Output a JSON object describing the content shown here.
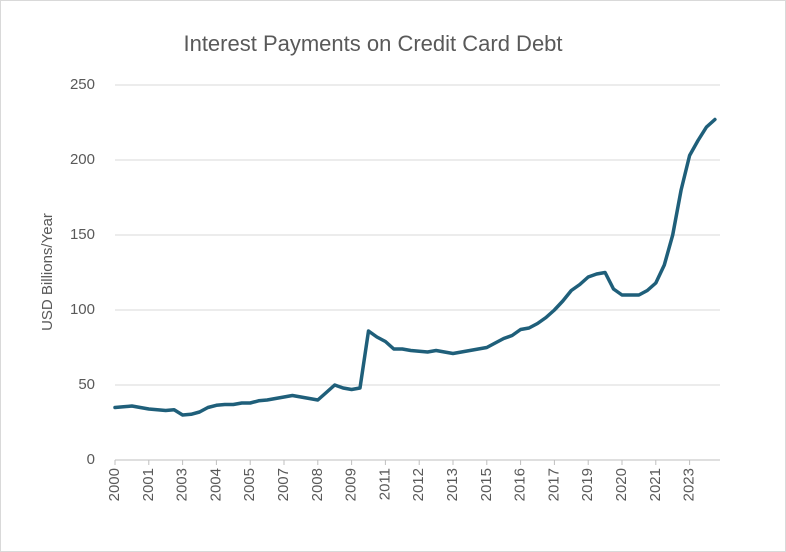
{
  "chart_data": {
    "type": "line",
    "title": "Interest Payments on Credit Card Debt",
    "y_label": "USD Billions/Year",
    "categories": [
      "2000",
      null,
      null,
      null,
      "2001",
      null,
      null,
      null,
      "2003",
      null,
      null,
      null,
      "2004",
      null,
      null,
      null,
      "2005",
      null,
      null,
      null,
      "2007",
      null,
      null,
      null,
      "2008",
      null,
      null,
      null,
      "2009",
      null,
      null,
      null,
      "2011",
      null,
      null,
      null,
      "2012",
      null,
      null,
      null,
      "2013",
      null,
      null,
      null,
      "2015",
      null,
      null,
      null,
      "2016",
      null,
      null,
      null,
      "2017",
      null,
      null,
      null,
      "2019",
      null,
      null,
      null,
      "2020",
      null,
      null,
      null,
      "2021",
      null,
      null,
      null,
      "2023",
      null,
      null,
      null
    ],
    "series": [
      {
        "name": "Interest Payments",
        "color": "#1f5f7a",
        "values": [
          35,
          35.5,
          36,
          35,
          34,
          33.5,
          33,
          33.5,
          30,
          30.5,
          32,
          35,
          36.5,
          37,
          37,
          38,
          38,
          39.5,
          40,
          41,
          42,
          43,
          42,
          41,
          40,
          45,
          50,
          48,
          47,
          48,
          86,
          82,
          79,
          74,
          74,
          73,
          72.5,
          72,
          73,
          72,
          71,
          72,
          73,
          74,
          75,
          78,
          81,
          83,
          87,
          88,
          91,
          95,
          100,
          106,
          113,
          117,
          122,
          124,
          125,
          114,
          110,
          110,
          110,
          113,
          118,
          130,
          150,
          180,
          203,
          213,
          222,
          227
        ]
      }
    ],
    "ylim": [
      0,
      250
    ],
    "yticks": [
      0,
      50,
      100,
      150,
      200,
      250
    ],
    "grid": true
  }
}
